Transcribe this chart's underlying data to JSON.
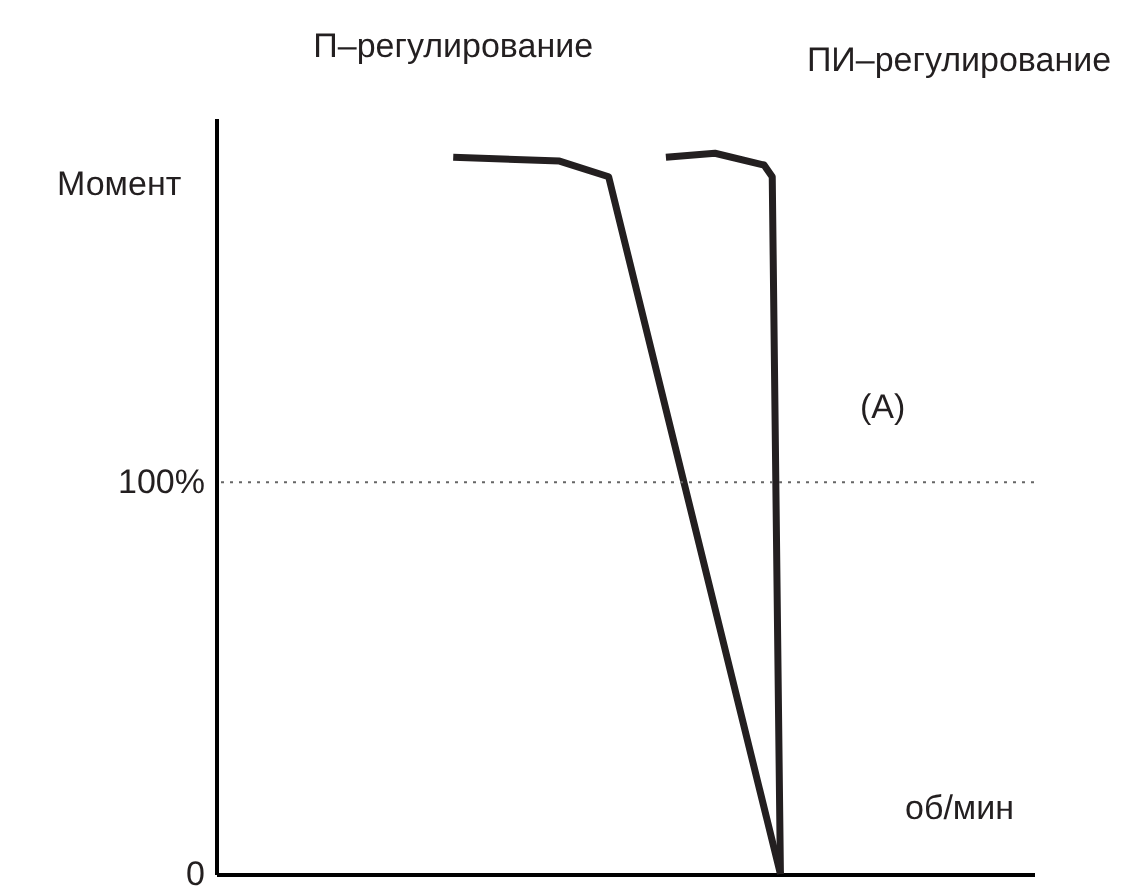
{
  "chart_data": {
    "type": "line",
    "xlabel": "об/мин",
    "ylabel": "Момент",
    "ylim": [
      0,
      193
    ],
    "yticks": [
      0,
      {
        "value": 100,
        "label": "100%"
      }
    ],
    "tick_labels": "y",
    "grid": false,
    "legend": false,
    "marker": "none",
    "line_style": "solid",
    "categories": [
      null,
      null,
      null,
      null,
      null,
      null,
      null,
      null,
      null,
      null,
      null,
      null,
      null,
      null,
      null,
      null,
      null,
      null,
      null,
      null,
      null,
      null,
      null,
      null,
      null,
      null,
      null,
      null,
      null,
      null,
      null,
      null,
      null,
      null,
      null,
      null,
      null,
      null,
      null,
      null,
      null,
      null,
      null,
      null,
      null,
      null,
      null,
      null,
      null,
      null,
      null,
      null,
      null,
      null,
      null,
      null,
      null,
      null,
      null,
      null,
      null,
      null,
      null,
      null,
      null,
      null,
      null,
      null,
      null,
      null,
      null,
      null,
      null,
      null,
      null,
      null,
      null,
      null,
      null,
      null,
      null,
      null,
      null,
      null,
      null,
      null,
      null,
      null,
      null,
      null,
      null,
      null,
      null,
      null,
      null,
      null,
      null,
      null,
      null,
      null,
      null
    ],
    "series": [
      {
        "name": "П–регулирование",
        "color": "#231f20",
        "values": [
          null,
          null,
          null,
          null,
          null,
          null,
          null,
          null,
          null,
          null,
          null,
          null,
          null,
          null,
          null,
          null,
          null,
          null,
          null,
          null,
          null,
          null,
          null,
          null,
          null,
          null,
          null,
          null,
          null,
          183,
          null,
          null,
          null,
          null,
          null,
          null,
          null,
          null,
          null,
          null,
          null,
          null,
          182,
          null,
          null,
          null,
          null,
          null,
          178,
          null,
          null,
          null,
          null,
          null,
          null,
          null,
          null,
          null,
          null,
          null,
          null,
          null,
          null,
          null,
          null,
          null,
          null,
          null,
          null,
          0,
          null,
          null,
          null,
          null,
          null,
          null,
          null,
          null,
          null,
          null,
          null,
          null,
          null,
          null,
          null,
          null,
          null,
          null,
          null,
          null,
          null,
          null,
          null,
          null,
          null,
          null,
          null,
          null,
          null,
          null,
          null
        ]
      },
      {
        "name": "ПИ–регулирование",
        "color": "#231f20",
        "values": [
          null,
          null,
          null,
          null,
          null,
          null,
          null,
          null,
          null,
          null,
          null,
          null,
          null,
          null,
          null,
          null,
          null,
          null,
          null,
          null,
          null,
          null,
          null,
          null,
          null,
          null,
          null,
          null,
          null,
          null,
          null,
          null,
          null,
          null,
          null,
          null,
          null,
          null,
          null,
          null,
          null,
          null,
          null,
          null,
          null,
          null,
          null,
          null,
          null,
          null,
          null,
          null,
          null,
          null,
          null,
          183,
          null,
          null,
          null,
          null,
          null,
          184,
          null,
          null,
          null,
          null,
          null,
          181,
          178,
          0,
          null,
          null,
          null,
          null,
          null,
          null,
          null,
          null,
          null,
          null,
          null,
          null,
          null,
          null,
          null,
          null,
          null,
          null,
          null,
          null,
          null,
          null,
          null,
          null,
          null,
          null,
          null,
          null,
          null,
          null,
          null
        ]
      }
    ],
    "ref_lines": [
      {
        "axis": "y",
        "value": 100,
        "color": "#666666",
        "line_style": "dotted"
      }
    ],
    "annotations": [
      "(A)"
    ]
  }
}
